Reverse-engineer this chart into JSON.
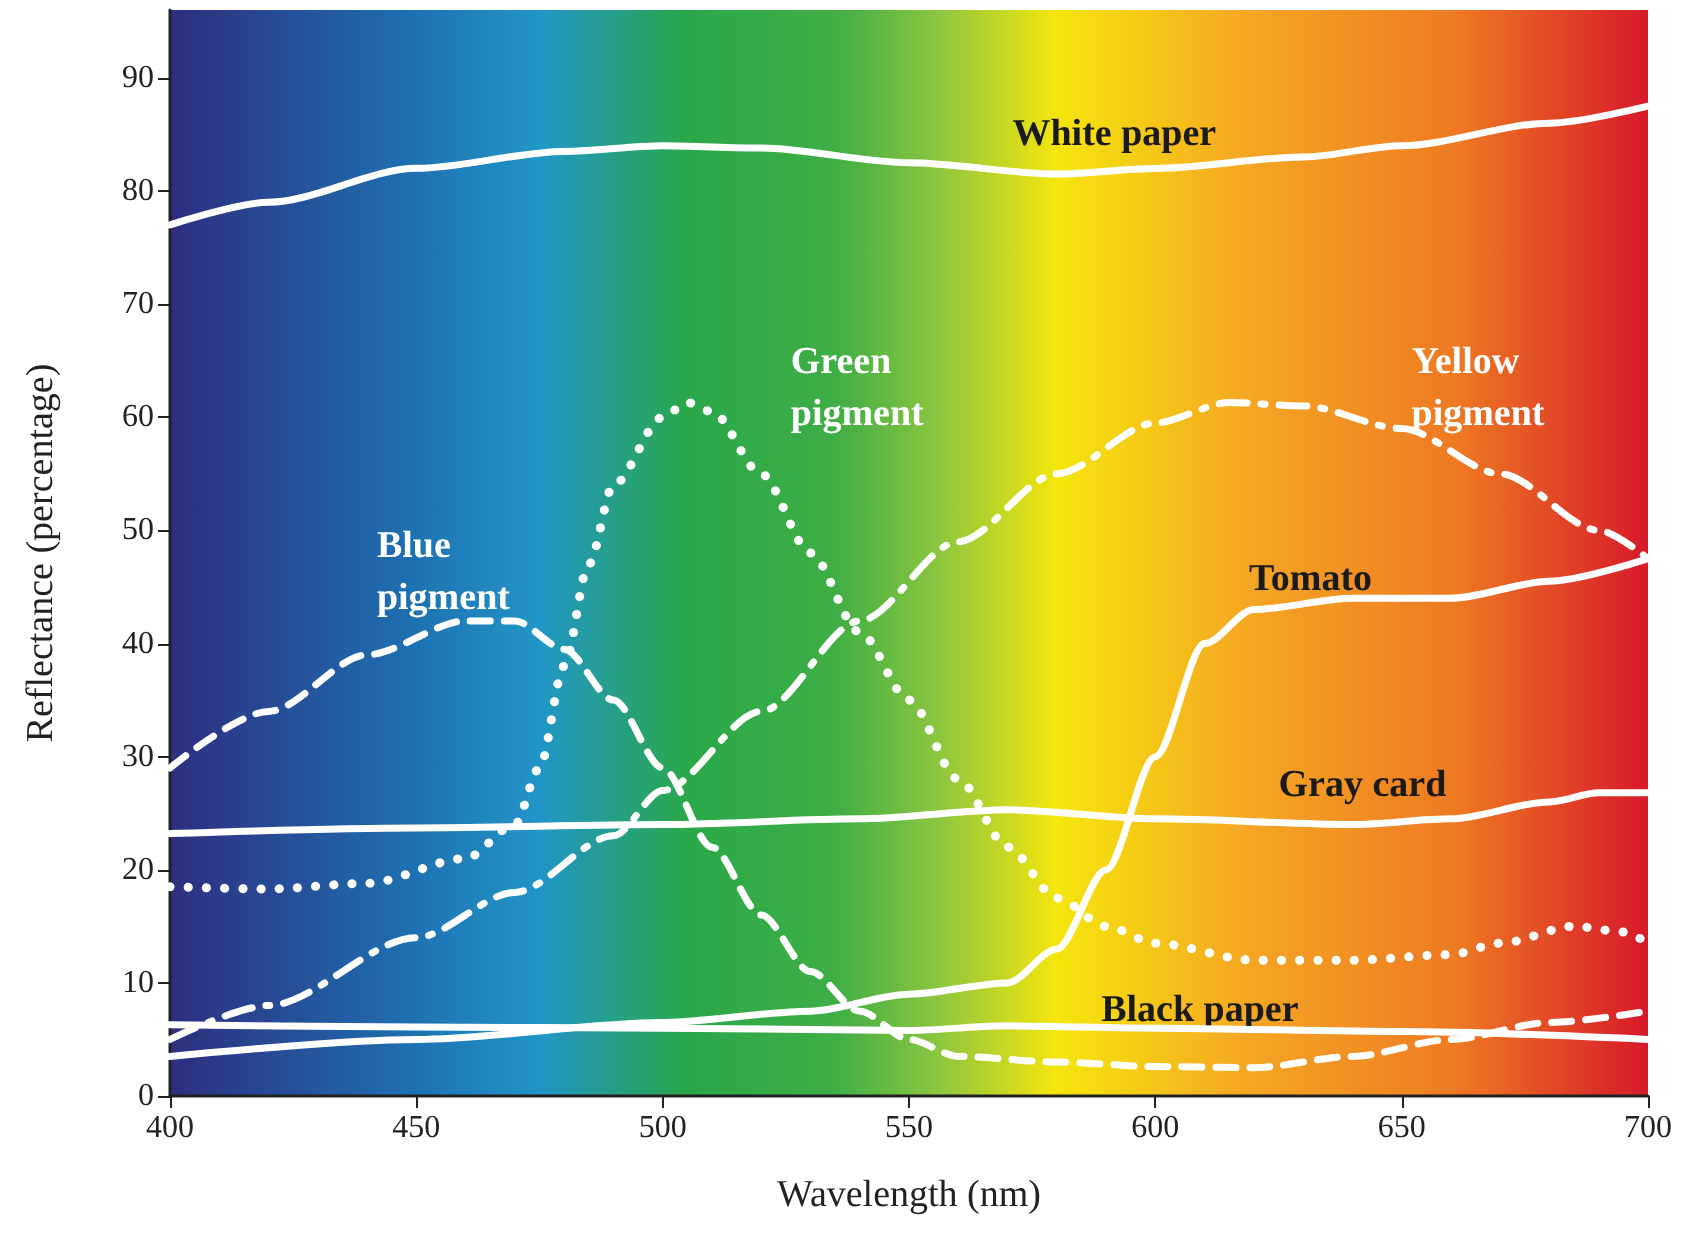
{
  "chart_data": {
    "type": "line",
    "xlabel": "Wavelength (nm)",
    "ylabel": "Reflectance (percentage)",
    "xlim": [
      400,
      700
    ],
    "xticks": [
      400,
      450,
      500,
      550,
      600,
      650,
      700
    ],
    "ylim": [
      0,
      96
    ],
    "yticks": [
      0,
      10,
      20,
      30,
      40,
      50,
      60,
      70,
      80,
      90
    ],
    "grid": false,
    "legend": false,
    "marker": "none",
    "series": [
      {
        "name": "White paper",
        "color": "#ffffff",
        "line_style": "solid",
        "x": [
          400,
          420,
          450,
          480,
          500,
          520,
          550,
          580,
          600,
          630,
          650,
          680,
          700
        ],
        "values": [
          77,
          79,
          82,
          83.5,
          84,
          83.8,
          82.5,
          81.5,
          82,
          83,
          84,
          86,
          87.5
        ]
      },
      {
        "name": "Green pigment",
        "color": "#ffffff",
        "line_style": "dotted",
        "x": [
          400,
          420,
          440,
          460,
          470,
          475,
          480,
          485,
          490,
          500,
          505,
          510,
          520,
          530,
          540,
          550,
          560,
          570,
          580,
          590,
          600,
          620,
          640,
          660,
          670,
          685,
          695,
          700
        ],
        "values": [
          18.5,
          18.3,
          18.8,
          21,
          24,
          29,
          38,
          47,
          54,
          60,
          61.3,
          60.5,
          55,
          48,
          41,
          35,
          28,
          22,
          17.5,
          15,
          13.5,
          12,
          12,
          12.5,
          13.5,
          15,
          14.5,
          13.5
        ]
      },
      {
        "name": "Yellow pigment",
        "color": "#ffffff",
        "line_style": "dashdot",
        "x": [
          400,
          420,
          450,
          470,
          490,
          500,
          520,
          540,
          560,
          580,
          600,
          615,
          630,
          650,
          670,
          690,
          700
        ],
        "values": [
          5,
          8,
          14,
          18,
          23,
          27,
          34,
          42,
          49,
          55,
          59.5,
          61.3,
          61,
          59,
          55,
          50,
          47.5
        ]
      },
      {
        "name": "Blue pigment",
        "color": "#ffffff",
        "line_style": "dashed",
        "x": [
          400,
          420,
          440,
          460,
          470,
          480,
          490,
          500,
          510,
          520,
          530,
          540,
          550,
          560,
          580,
          600,
          620,
          640,
          660,
          680,
          700
        ],
        "values": [
          29,
          34,
          39,
          42,
          42,
          39.5,
          35,
          29,
          22,
          16,
          11,
          7.5,
          5,
          3.5,
          3,
          2.6,
          2.5,
          3.5,
          5,
          6.5,
          7.5
        ]
      },
      {
        "name": "Tomato",
        "color": "#ffffff",
        "line_style": "solid",
        "x": [
          400,
          450,
          500,
          530,
          550,
          570,
          580,
          590,
          600,
          610,
          620,
          640,
          660,
          680,
          700
        ],
        "values": [
          3.5,
          5,
          6.5,
          7.5,
          9,
          10,
          13,
          20,
          30,
          40,
          43,
          44,
          44,
          45.5,
          47.5
        ]
      },
      {
        "name": "Gray card",
        "color": "#ffffff",
        "line_style": "solid",
        "x": [
          400,
          450,
          500,
          540,
          570,
          600,
          640,
          660,
          680,
          690,
          700
        ],
        "values": [
          23.2,
          23.7,
          24,
          24.5,
          25.3,
          24.5,
          24,
          24.5,
          26,
          26.8,
          26.8
        ]
      },
      {
        "name": "Black paper",
        "color": "#ffffff",
        "line_style": "solid",
        "x": [
          400,
          450,
          500,
          550,
          570,
          600,
          650,
          700
        ],
        "values": [
          6.3,
          6.1,
          6,
          5.8,
          6.2,
          6,
          5.7,
          5
        ]
      }
    ]
  }
}
